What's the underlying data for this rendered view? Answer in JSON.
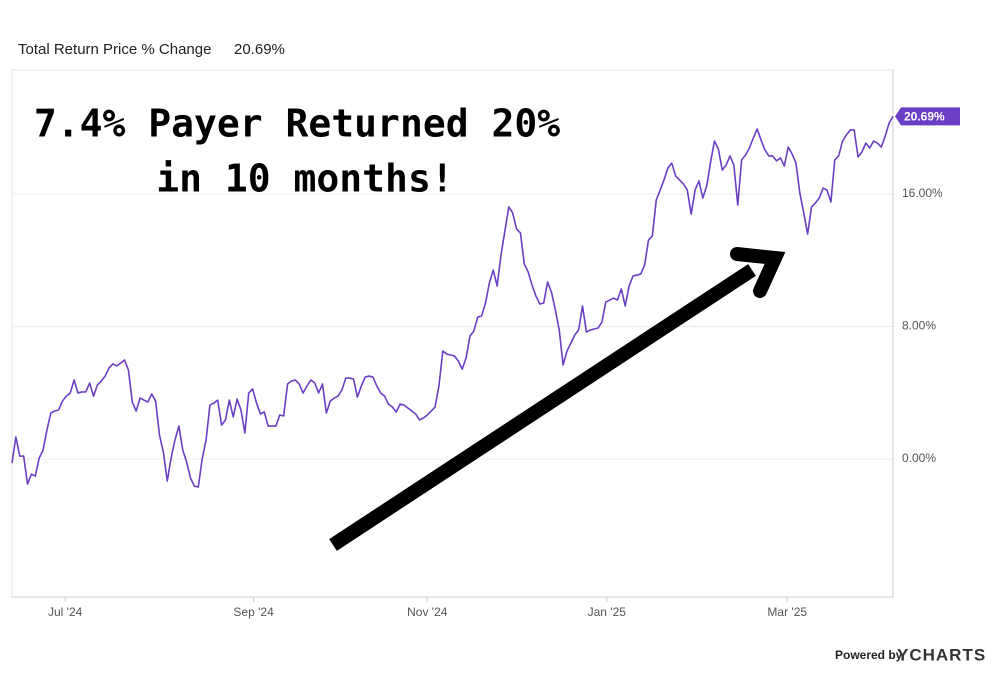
{
  "chart_data": {
    "type": "line",
    "title": "Total Return Price % Change",
    "last_value_label": "20.69%",
    "annotation": [
      "7.4% Payer Returned 20%",
      "in 10 months!"
    ],
    "footer": [
      "Powered by",
      "YCHARTS"
    ],
    "series": [
      {
        "name": "Total Return Price % Change",
        "color": "#6a3fc4",
        "values": [
          -0.24,
          1.33,
          0.18,
          0.18,
          -1.51,
          -0.91,
          -1.03,
          0.06,
          0.54,
          1.75,
          2.78,
          2.9,
          2.96,
          3.5,
          3.8,
          3.99,
          4.77,
          3.99,
          4.05,
          4.05,
          4.59,
          3.8,
          4.47,
          4.71,
          5.01,
          5.5,
          5.74,
          5.62,
          5.8,
          5.98,
          5.37,
          3.44,
          2.9,
          3.68,
          3.56,
          3.44,
          3.93,
          3.5,
          1.45,
          0.42,
          -1.33,
          0.06,
          1.15,
          1.99,
          0.54,
          -0.18,
          -1.15,
          -1.63,
          -1.69,
          0.0,
          1.15,
          3.26,
          3.38,
          3.56,
          2.05,
          2.36,
          3.56,
          2.54,
          3.62,
          2.96,
          1.57,
          3.99,
          4.23,
          3.38,
          2.72,
          2.84,
          1.99,
          1.99,
          1.99,
          2.66,
          2.6,
          4.53,
          4.71,
          4.77,
          4.53,
          3.99,
          4.41,
          4.77,
          4.59,
          3.99,
          4.53,
          2.78,
          3.5,
          3.68,
          3.8,
          4.17,
          4.89,
          4.89,
          4.83,
          3.74,
          4.41,
          4.95,
          5.01,
          4.95,
          4.41,
          3.99,
          3.8,
          3.32,
          3.14,
          2.84,
          3.32,
          3.26,
          3.08,
          2.9,
          2.72,
          2.36,
          2.48,
          2.66,
          2.9,
          3.14,
          4.41,
          6.52,
          6.34,
          6.28,
          6.22,
          5.92,
          5.43,
          6.1,
          7.43,
          7.73,
          8.57,
          8.64,
          9.42,
          10.63,
          11.41,
          10.45,
          12.32,
          13.77,
          15.22,
          14.86,
          13.89,
          13.65,
          11.78,
          11.29,
          10.51,
          9.84,
          9.36,
          9.42,
          10.69,
          10.08,
          9.0,
          7.79,
          5.68,
          6.52,
          7.0,
          7.49,
          7.79,
          9.24,
          7.67,
          7.79,
          7.85,
          7.91,
          8.27,
          9.48,
          9.6,
          9.72,
          9.6,
          10.27,
          9.24,
          10.45,
          11.05,
          11.11,
          11.17,
          11.71,
          13.22,
          13.47,
          15.64,
          16.24,
          16.85,
          17.57,
          17.87,
          17.09,
          16.85,
          16.61,
          16.24,
          14.79,
          16.24,
          16.79,
          15.76,
          16.49,
          17.93,
          19.2,
          18.72,
          17.45,
          17.75,
          18.3,
          17.75,
          15.34,
          18.06,
          18.36,
          18.78,
          19.38,
          19.93,
          19.26,
          18.66,
          18.3,
          18.3,
          18.0,
          18.18,
          17.69,
          18.84,
          18.42,
          17.87,
          16.06,
          14.86,
          13.59,
          15.22,
          15.46,
          15.76,
          16.36,
          16.24,
          15.52,
          18.06,
          18.3,
          19.2,
          19.57,
          19.87,
          19.87,
          18.24,
          18.54,
          19.08,
          18.78,
          19.2,
          19.08,
          18.84,
          19.5,
          20.29,
          20.69
        ]
      }
    ],
    "xlim": [
      0,
      227
    ],
    "xticks": [
      {
        "value": 13.7,
        "label": "Jul '24"
      },
      {
        "value": 62.25,
        "label": "Sep '24"
      },
      {
        "value": 107,
        "label": "Nov '24"
      },
      {
        "value": 153.25,
        "label": "Jan '25"
      },
      {
        "value": 199.75,
        "label": "Mar '25"
      }
    ],
    "ylim": [
      -8.33,
      23.49
    ],
    "yticks": [
      {
        "value": 0,
        "label": "0.00%"
      },
      {
        "value": 8,
        "label": "8.00%"
      },
      {
        "value": 16,
        "label": "16.00%"
      }
    ],
    "grid": true
  }
}
